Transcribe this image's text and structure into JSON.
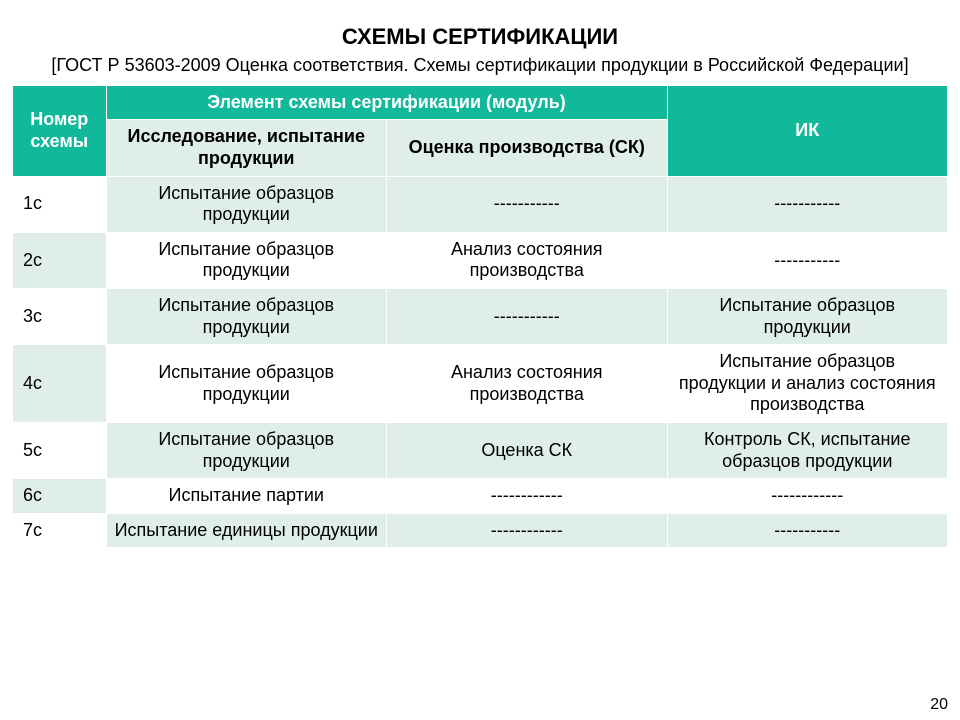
{
  "title": "СХЕМЫ СЕРТИФИКАЦИИ",
  "subtitle": "[ГОСТ Р 53603-2009 Оценка соответствия. Схемы сертификации продукции в Российской Федерации]",
  "page_number": "20",
  "table": {
    "type": "table",
    "header_bg_teal": "#12b89a",
    "header_fg_teal": "#ffffff",
    "band_bg": "#dfeee8",
    "border_color": "#ffffff",
    "font_size": 18,
    "columns": {
      "num": "Номер схемы",
      "module_group": "Элемент схемы сертификации (модуль)",
      "test": "Исследование, испытание продукции",
      "eval": "Оценка производства (СК)",
      "ik": "ИК"
    },
    "column_widths_pct": [
      10,
      30,
      30,
      30
    ],
    "rows": [
      {
        "num": "1с",
        "test": "Испытание образцов продукции",
        "eval": "-----------",
        "ik": "-----------"
      },
      {
        "num": "2с",
        "test": "Испытание образцов продукции",
        "eval": "Анализ состояния производства",
        "ik": "-----------"
      },
      {
        "num": "3с",
        "test": "Испытание образцов продукции",
        "eval": "-----------",
        "ik": "Испытание образцов продукции"
      },
      {
        "num": "4с",
        "test": "Испытание образцов продукции",
        "eval": "Анализ состояния производства",
        "ik": "Испытание образцов продукции и анализ состояния производства"
      },
      {
        "num": "5с",
        "test": "Испытание образцов продукции",
        "eval": "Оценка СК",
        "ik": "Контроль СК, испытание образцов продукции"
      },
      {
        "num": "6с",
        "test": "Испытание партии",
        "eval": "------------",
        "ik": "------------"
      },
      {
        "num": "7с",
        "test": "Испытание единицы продукции",
        "eval": "------------",
        "ik": "-----------"
      }
    ]
  }
}
